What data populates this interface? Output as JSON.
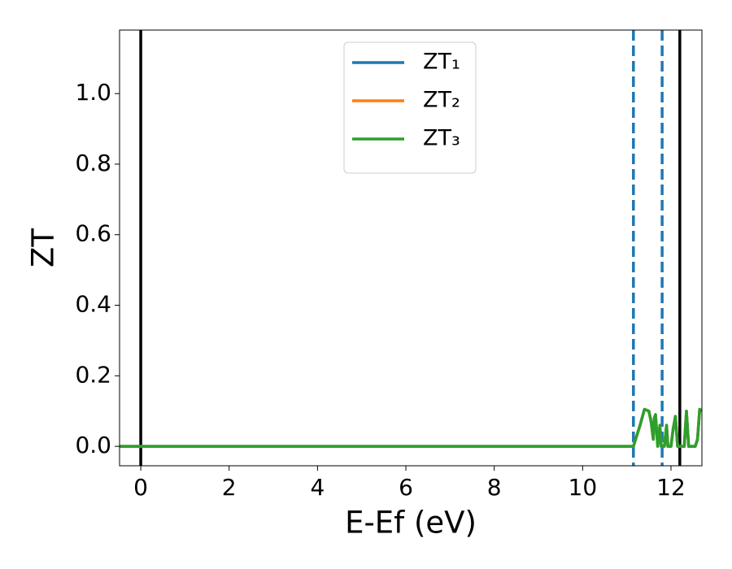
{
  "chart_data": {
    "type": "line",
    "x_label": "E-Ef (eV)",
    "y_label": "ZT",
    "xlim": [
      -0.48,
      12.7
    ],
    "ylim": [
      -0.055,
      1.18
    ],
    "xticks": [
      0,
      2,
      4,
      6,
      8,
      10,
      12
    ],
    "yticks": [
      {
        "value": 0,
        "label": "0.0"
      },
      0.2,
      0.4,
      0.6,
      0.8,
      {
        "value": 1,
        "label": "1.0"
      }
    ],
    "x": [
      -0.48,
      11.15,
      11.3,
      11.4,
      11.5,
      11.55,
      11.6,
      11.62,
      11.65,
      11.7,
      11.75,
      11.78,
      11.85,
      11.9,
      11.93,
      12.0,
      12.05,
      12.1,
      12.15,
      12.3,
      12.35,
      12.4,
      12.55,
      12.6,
      12.65,
      12.7
    ],
    "series": [
      {
        "name": "ZT₁",
        "color": "#1f77b4",
        "values": [
          0,
          0,
          0.06,
          0.105,
          0.1,
          0.07,
          0.02,
          0.08,
          0.09,
          0,
          0.06,
          0,
          0,
          0.06,
          0,
          0,
          0.05,
          0.085,
          0,
          0,
          0.1,
          0,
          0,
          0.02,
          0.105,
          0.1
        ]
      },
      {
        "name": "ZT₂",
        "color": "#ff7f0e",
        "values": [
          0,
          0,
          0.06,
          0.105,
          0.1,
          0.07,
          0.02,
          0.08,
          0.09,
          0,
          0.06,
          0,
          0,
          0.06,
          0,
          0,
          0.05,
          0.085,
          0,
          0,
          0.1,
          0,
          0,
          0.02,
          0.105,
          0.1
        ]
      },
      {
        "name": "ZT₃",
        "color": "#2ca02c",
        "values": [
          0,
          0,
          0.06,
          0.105,
          0.1,
          0.07,
          0.02,
          0.08,
          0.09,
          0,
          0.06,
          0,
          0,
          0.06,
          0,
          0,
          0.05,
          0.085,
          0,
          0,
          0.1,
          0,
          0,
          0.02,
          0.105,
          0.1
        ]
      }
    ],
    "vlines": [
      {
        "x": 0,
        "color": "#000000",
        "dashed": false
      },
      {
        "x": 12.2,
        "color": "#000000",
        "dashed": false
      },
      {
        "x": 11.15,
        "color": "#1f77b4",
        "dashed": true
      },
      {
        "x": 11.8,
        "color": "#1f77b4",
        "dashed": true
      }
    ],
    "legend": "upper center"
  }
}
